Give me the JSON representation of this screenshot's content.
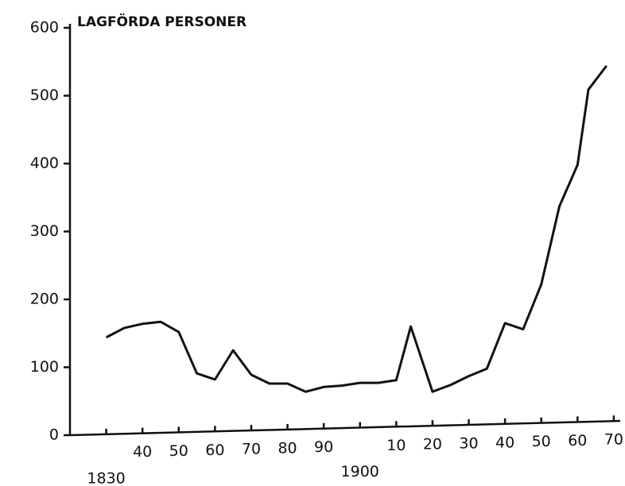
{
  "chart_data": {
    "type": "line",
    "title": "LAGFÖRDA PERSONER",
    "x": [
      1830,
      1835,
      1840,
      1845,
      1850,
      1855,
      1860,
      1865,
      1870,
      1875,
      1880,
      1885,
      1890,
      1895,
      1900,
      1905,
      1910,
      1914,
      1920,
      1925,
      1930,
      1935,
      1940,
      1945,
      1950,
      1955,
      1960,
      1963,
      1968
    ],
    "series": [
      {
        "color": "#111111",
        "values": [
          144,
          158,
          164,
          167,
          152,
          91,
          82,
          125,
          89,
          76,
          76,
          64,
          71,
          73,
          77,
          77,
          81,
          160,
          64,
          74,
          87,
          98,
          165,
          156,
          222,
          337,
          398,
          509,
          544
        ]
      }
    ],
    "xlim": [
      1820,
      1972
    ],
    "xticks": [
      1830,
      {
        "value": 1840,
        "label": "40"
      },
      {
        "value": 1850,
        "label": "50"
      },
      {
        "value": 1860,
        "label": "60"
      },
      {
        "value": 1870,
        "label": "70"
      },
      {
        "value": 1880,
        "label": "80"
      },
      {
        "value": 1890,
        "label": "90"
      },
      1900,
      {
        "value": 1910,
        "label": "10"
      },
      {
        "value": 1920,
        "label": "20"
      },
      {
        "value": 1930,
        "label": "30"
      },
      {
        "value": 1940,
        "label": "40"
      },
      {
        "value": 1950,
        "label": "50"
      },
      {
        "value": 1960,
        "label": "60"
      },
      {
        "value": 1970,
        "label": "70"
      }
    ],
    "ylim": [
      0,
      600
    ],
    "yticks": [
      0,
      100,
      200,
      300,
      400,
      500,
      600
    ],
    "grid": false
  }
}
